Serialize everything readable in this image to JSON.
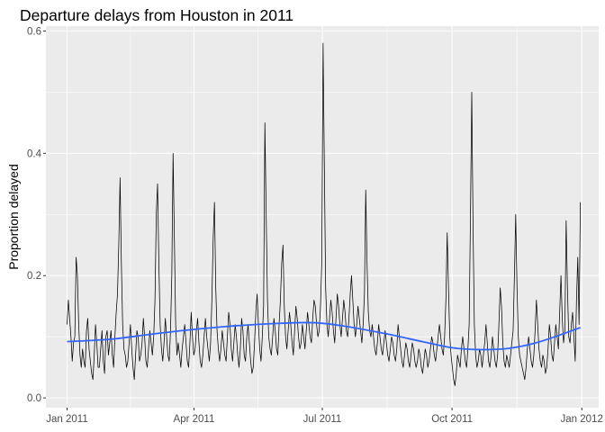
{
  "chart_data": {
    "type": "line",
    "title": "Departure delays from Houston in 2011",
    "xlabel": "",
    "ylabel": "Proportion delayed",
    "xlim": [
      "2010-12-17",
      "2012-01-13"
    ],
    "ylim": [
      -0.016,
      0.608
    ],
    "grid": true,
    "legend": "none",
    "x_ticks": [
      {
        "date": "2011-01-01",
        "label": "Jan 2011"
      },
      {
        "date": "2011-04-01",
        "label": "Apr 2011"
      },
      {
        "date": "2011-07-01",
        "label": "Jul 2011"
      },
      {
        "date": "2011-10-01",
        "label": "Oct 2011"
      },
      {
        "date": "2012-01-01",
        "label": "Jan 2012"
      }
    ],
    "y_ticks": [
      0.0,
      0.2,
      0.4,
      0.6
    ],
    "y_tick_labels": [
      "0.0",
      "0.2",
      "0.4",
      "0.6"
    ],
    "x_range": [
      "2011-01-01",
      "2011-12-31"
    ],
    "series": [
      {
        "color": "#000000",
        "values": [
          0.12,
          0.16,
          0.13,
          0.1,
          0.06,
          0.09,
          0.1,
          0.23,
          0.2,
          0.12,
          0.07,
          0.05,
          0.08,
          0.06,
          0.05,
          0.11,
          0.13,
          0.08,
          0.06,
          0.04,
          0.03,
          0.07,
          0.12,
          0.09,
          0.05,
          0.05,
          0.08,
          0.11,
          0.06,
          0.04,
          0.1,
          0.11,
          0.07,
          0.09,
          0.11,
          0.07,
          0.05,
          0.1,
          0.14,
          0.17,
          0.25,
          0.36,
          0.22,
          0.12,
          0.08,
          0.07,
          0.05,
          0.06,
          0.09,
          0.12,
          0.08,
          0.05,
          0.03,
          0.07,
          0.11,
          0.1,
          0.06,
          0.07,
          0.09,
          0.13,
          0.1,
          0.06,
          0.05,
          0.08,
          0.11,
          0.09,
          0.07,
          0.1,
          0.16,
          0.3,
          0.35,
          0.22,
          0.12,
          0.08,
          0.06,
          0.09,
          0.13,
          0.1,
          0.07,
          0.06,
          0.11,
          0.2,
          0.4,
          0.26,
          0.12,
          0.07,
          0.09,
          0.07,
          0.05,
          0.08,
          0.1,
          0.12,
          0.09,
          0.06,
          0.05,
          0.09,
          0.14,
          0.1,
          0.07,
          0.08,
          0.11,
          0.13,
          0.09,
          0.06,
          0.05,
          0.07,
          0.1,
          0.13,
          0.1,
          0.08,
          0.06,
          0.09,
          0.16,
          0.26,
          0.32,
          0.18,
          0.11,
          0.08,
          0.06,
          0.08,
          0.11,
          0.09,
          0.07,
          0.06,
          0.1,
          0.14,
          0.12,
          0.08,
          0.06,
          0.09,
          0.12,
          0.1,
          0.07,
          0.05,
          0.08,
          0.13,
          0.11,
          0.07,
          0.06,
          0.1,
          0.12,
          0.09,
          0.06,
          0.04,
          0.05,
          0.09,
          0.14,
          0.17,
          0.12,
          0.08,
          0.06,
          0.1,
          0.15,
          0.45,
          0.3,
          0.16,
          0.1,
          0.08,
          0.07,
          0.1,
          0.13,
          0.11,
          0.08,
          0.07,
          0.12,
          0.16,
          0.22,
          0.25,
          0.15,
          0.1,
          0.08,
          0.11,
          0.14,
          0.12,
          0.09,
          0.07,
          0.11,
          0.15,
          0.13,
          0.1,
          0.08,
          0.09,
          0.12,
          0.1,
          0.08,
          0.11,
          0.14,
          0.12,
          0.1,
          0.09,
          0.13,
          0.16,
          0.15,
          0.12,
          0.1,
          0.11,
          0.15,
          0.22,
          0.58,
          0.38,
          0.18,
          0.12,
          0.1,
          0.13,
          0.16,
          0.14,
          0.11,
          0.09,
          0.13,
          0.17,
          0.15,
          0.12,
          0.1,
          0.13,
          0.16,
          0.14,
          0.11,
          0.1,
          0.13,
          0.17,
          0.2,
          0.16,
          0.12,
          0.1,
          0.12,
          0.15,
          0.13,
          0.11,
          0.09,
          0.12,
          0.17,
          0.34,
          0.22,
          0.14,
          0.11,
          0.1,
          0.12,
          0.1,
          0.08,
          0.07,
          0.09,
          0.12,
          0.1,
          0.08,
          0.07,
          0.09,
          0.11,
          0.09,
          0.07,
          0.06,
          0.08,
          0.1,
          0.09,
          0.07,
          0.06,
          0.08,
          0.12,
          0.1,
          0.08,
          0.06,
          0.05,
          0.07,
          0.09,
          0.08,
          0.06,
          0.05,
          0.07,
          0.09,
          0.08,
          0.06,
          0.05,
          0.06,
          0.08,
          0.07,
          0.05,
          0.04,
          0.06,
          0.08,
          0.07,
          0.05,
          0.06,
          0.08,
          0.1,
          0.09,
          0.07,
          0.06,
          0.08,
          0.1,
          0.12,
          0.1,
          0.08,
          0.07,
          0.1,
          0.16,
          0.27,
          0.18,
          0.1,
          0.07,
          0.05,
          0.03,
          0.02,
          0.04,
          0.07,
          0.06,
          0.05,
          0.08,
          0.1,
          0.08,
          0.06,
          0.05,
          0.08,
          0.12,
          0.3,
          0.5,
          0.28,
          0.12,
          0.07,
          0.05,
          0.06,
          0.08,
          0.07,
          0.05,
          0.07,
          0.09,
          0.12,
          0.09,
          0.06,
          0.05,
          0.07,
          0.1,
          0.08,
          0.06,
          0.05,
          0.07,
          0.12,
          0.18,
          0.15,
          0.09,
          0.06,
          0.05,
          0.07,
          0.06,
          0.05,
          0.07,
          0.09,
          0.11,
          0.2,
          0.3,
          0.18,
          0.1,
          0.07,
          0.06,
          0.05,
          0.04,
          0.03,
          0.05,
          0.08,
          0.1,
          0.08,
          0.06,
          0.05,
          0.07,
          0.11,
          0.16,
          0.12,
          0.08,
          0.06,
          0.05,
          0.07,
          0.06,
          0.04,
          0.05,
          0.08,
          0.12,
          0.1,
          0.07,
          0.06,
          0.09,
          0.12,
          0.1,
          0.08,
          0.14,
          0.2,
          0.13,
          0.09,
          0.11,
          0.29,
          0.18,
          0.1,
          0.09,
          0.12,
          0.14,
          0.1,
          0.06,
          0.16,
          0.23,
          0.12,
          0.32
        ]
      },
      {
        "color": "#3366ff",
        "smooth": [
          [
            "2011-01-01",
            0.092
          ],
          [
            "2011-02-01",
            0.096
          ],
          [
            "2011-03-01",
            0.104
          ],
          [
            "2011-04-01",
            0.112
          ],
          [
            "2011-05-01",
            0.118
          ],
          [
            "2011-06-01",
            0.122
          ],
          [
            "2011-06-25",
            0.123
          ],
          [
            "2011-07-15",
            0.118
          ],
          [
            "2011-08-15",
            0.105
          ],
          [
            "2011-09-10",
            0.092
          ],
          [
            "2011-10-01",
            0.082
          ],
          [
            "2011-10-20",
            0.079
          ],
          [
            "2011-11-10",
            0.081
          ],
          [
            "2011-12-01",
            0.091
          ],
          [
            "2011-12-31",
            0.115
          ]
        ]
      }
    ]
  }
}
